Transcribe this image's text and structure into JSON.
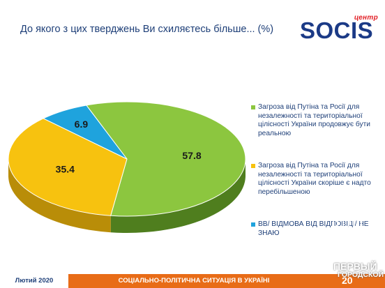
{
  "title": "До якого з цих тверджень Ви схиляєтесь більше... (%)",
  "logo": {
    "small": "центр",
    "name": "SOCIS"
  },
  "chart_data": {
    "type": "pie",
    "title": "До якого з цих тверджень Ви схиляєтесь більше... (%)",
    "categories": [
      "Загроза від Путіна та Росії для незалежності та територіальної цілісності України продовжує бути реальною",
      "Загроза від Путіна та Росії для незалежності та територіальної цілісності України скоріше є надто перебільшеною",
      "ВВ/ ВІДМОВА ВІД ВІДПОВІДІ/ НЕ ЗНАЮ"
    ],
    "values": [
      57.8,
      35.4,
      6.9
    ],
    "labels": [
      "57.8",
      "35.4",
      "6.9"
    ],
    "colors": [
      "#8cc63f",
      "#f7c20f",
      "#1fa3dd"
    ],
    "side_colors": [
      "#4f7e1e",
      "#b98d08",
      "#137bab"
    ],
    "legend_position": "right",
    "style": "3d"
  },
  "legend": [
    {
      "text": "Загроза від Путіна та Росії для незалежності та територіальної цілісності України продовжує бути реальною",
      "color": "#8cc63f"
    },
    {
      "text": "Загроза від Путіна та Росії для незалежності та територіальної цілісності України скоріше є надто перебільшеною",
      "color": "#f7c20f"
    },
    {
      "text": "ВВ/ ВІДМОВА ВІД ВІДПОВІДІ/ НЕ ЗНАЮ",
      "color": "#1fa3dd"
    }
  ],
  "footer": {
    "date": "Лютий 2020",
    "subtitle": "СОЦІАЛЬНО-ПОЛІТИЧНА СИТУАЦІЯ В УКРАЇНІ",
    "page": "20"
  },
  "watermark": {
    "line1": "ПЕРВЫЙ",
    "line2": "ГОРОДСКОЙ"
  }
}
